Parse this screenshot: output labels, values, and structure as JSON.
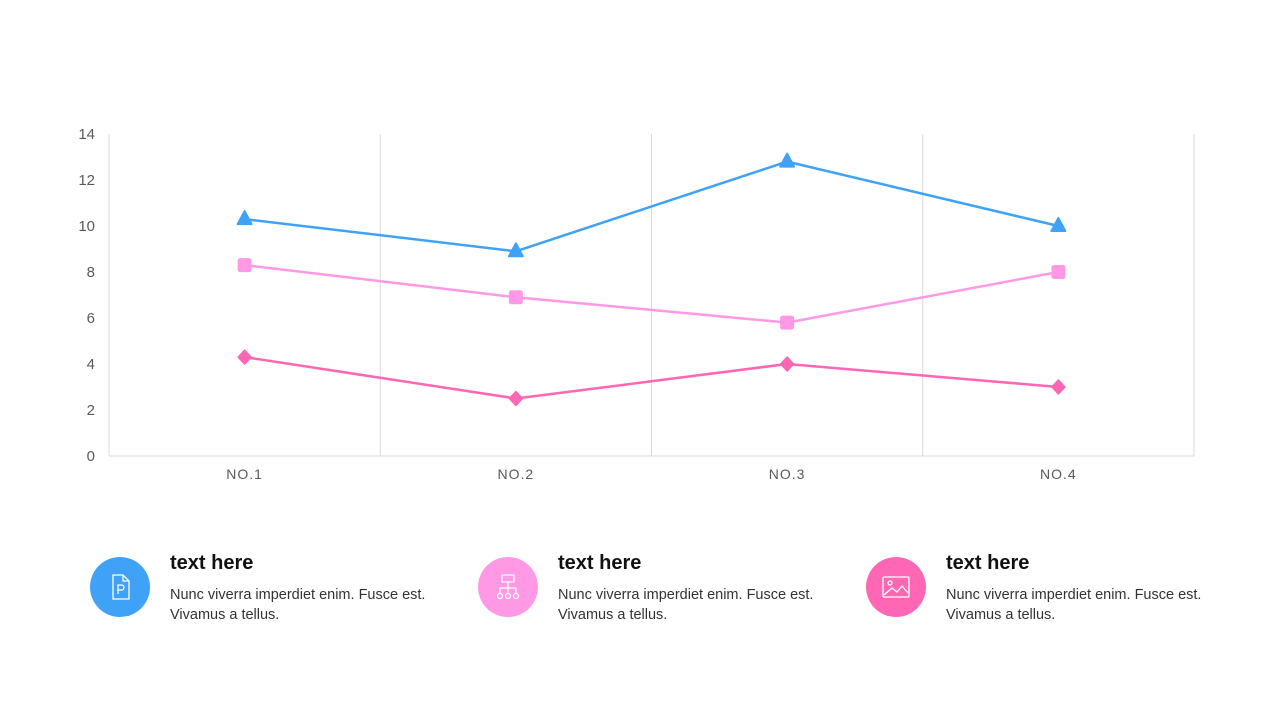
{
  "chart_data": {
    "type": "line",
    "categories": [
      "NO.1",
      "NO.2",
      "NO.3",
      "NO.4"
    ],
    "ylim": [
      0,
      14
    ],
    "yticks": [
      "0",
      "2",
      "4",
      "6",
      "8",
      "10",
      "12",
      "14"
    ],
    "grid": {
      "vertical": true,
      "horizontal": false
    },
    "series": [
      {
        "color": "#3FA2F7",
        "marker": "triangle",
        "values": [
          10.3,
          8.9,
          12.8,
          10.0
        ]
      },
      {
        "color": "#FF99E6",
        "marker": "square",
        "values": [
          8.3,
          6.9,
          5.8,
          8.0
        ]
      },
      {
        "color": "#FF66B3",
        "marker": "diamond",
        "values": [
          4.3,
          2.5,
          4.0,
          3.0
        ]
      }
    ]
  },
  "cards": [
    {
      "icon": "document-p-icon",
      "color": "#3FA2F7",
      "title": "text here",
      "desc": "Nunc viverra imperdiet enim. Fusce est. Vivamus a tellus."
    },
    {
      "icon": "hierarchy-icon",
      "color": "#FF99E6",
      "title": "text here",
      "desc": "Nunc viverra imperdiet enim. Fusce est. Vivamus a tellus."
    },
    {
      "icon": "image-icon",
      "color": "#FF66B3",
      "title": "text here",
      "desc": "Nunc viverra imperdiet enim. Fusce est. Vivamus a tellus."
    }
  ]
}
